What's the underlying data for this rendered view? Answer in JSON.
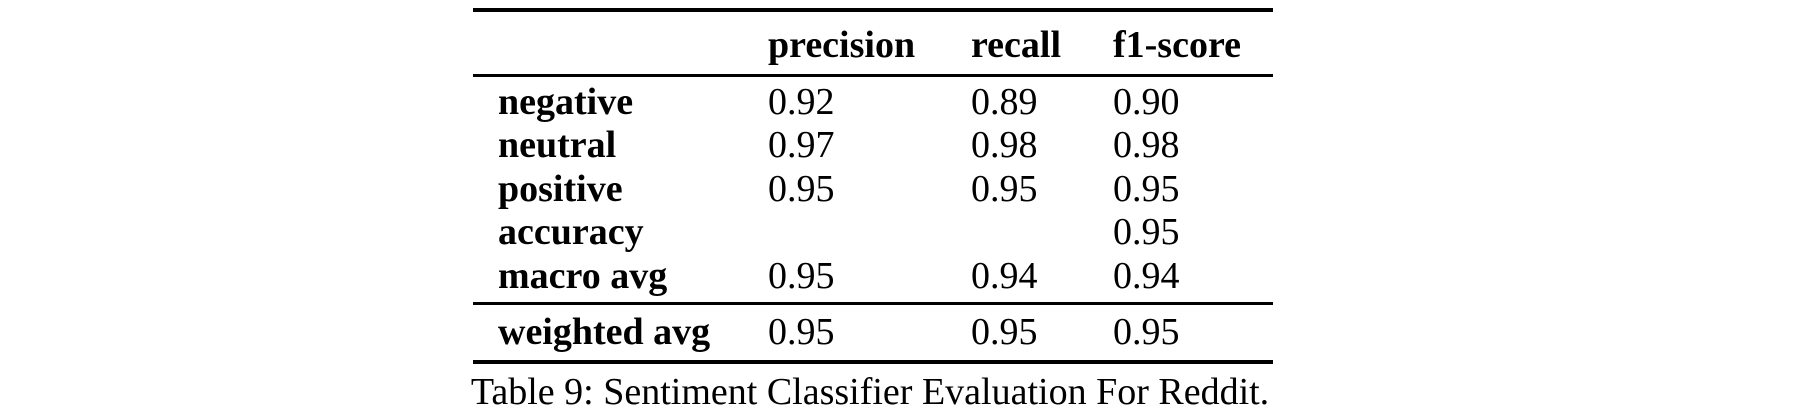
{
  "table": {
    "columns": [
      "",
      "precision",
      "recall",
      "f1-score"
    ],
    "rows": [
      {
        "label": "negative",
        "precision": "0.92",
        "recall": "0.89",
        "f1": "0.90"
      },
      {
        "label": "neutral",
        "precision": "0.97",
        "recall": "0.98",
        "f1": "0.98"
      },
      {
        "label": "positive",
        "precision": "0.95",
        "recall": "0.95",
        "f1": "0.95"
      },
      {
        "label": "accuracy",
        "precision": "",
        "recall": "",
        "f1": "0.95"
      },
      {
        "label": "macro avg",
        "precision": "0.95",
        "recall": "0.94",
        "f1": "0.94"
      },
      {
        "label": "weighted avg",
        "precision": "0.95",
        "recall": "0.95",
        "f1": "0.95"
      }
    ]
  },
  "caption": "Table 9: Sentiment Classifier Evaluation For Reddit."
}
